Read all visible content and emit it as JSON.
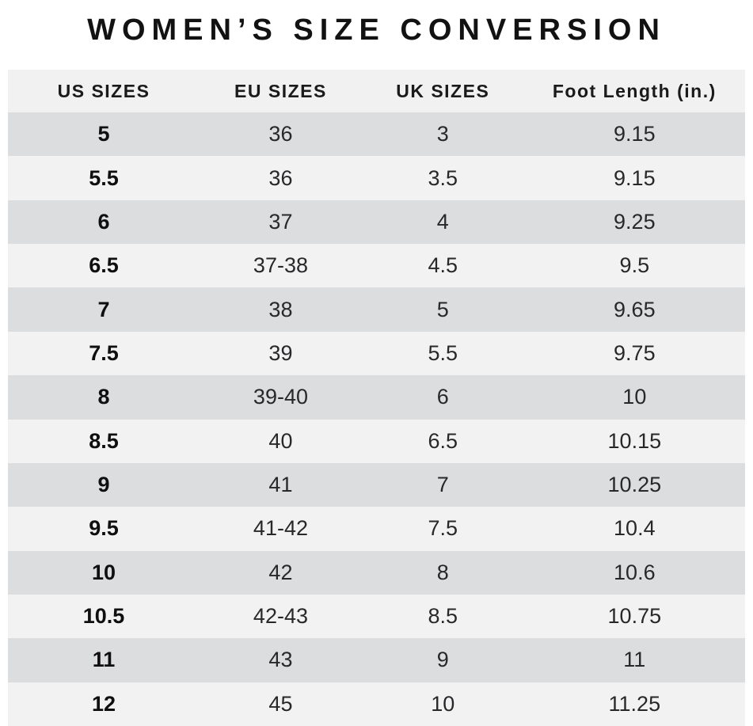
{
  "title": "WOMEN’S SIZE CONVERSION",
  "colors": {
    "row_dark": "#dcddde",
    "row_light": "#f2f2f3",
    "header_bg": "#f1f1f1",
    "title_text": "#121212",
    "cell_text": "#28282a"
  },
  "chart_data": {
    "type": "table",
    "title": "WOMEN’S SIZE CONVERSION",
    "columns": [
      "US SIZES",
      "EU SIZES",
      "UK SIZES",
      "Foot Length (in.)"
    ],
    "rows": [
      [
        "5",
        "36",
        "3",
        "9.15"
      ],
      [
        "5.5",
        "36",
        "3.5",
        "9.15"
      ],
      [
        "6",
        "37",
        "4",
        "9.25"
      ],
      [
        "6.5",
        "37-38",
        "4.5",
        "9.5"
      ],
      [
        "7",
        "38",
        "5",
        "9.65"
      ],
      [
        "7.5",
        "39",
        "5.5",
        "9.75"
      ],
      [
        "8",
        "39-40",
        "6",
        "10"
      ],
      [
        "8.5",
        "40",
        "6.5",
        "10.15"
      ],
      [
        "9",
        "41",
        "7",
        "10.25"
      ],
      [
        "9.5",
        "41-42",
        "7.5",
        "10.4"
      ],
      [
        "10",
        "42",
        "8",
        "10.6"
      ],
      [
        "10.5",
        "42-43",
        "8.5",
        "10.75"
      ],
      [
        "11",
        "43",
        "9",
        "11"
      ],
      [
        "12",
        "45",
        "10",
        "11.25"
      ]
    ],
    "layout": {
      "row_striping": "first data row dark, alternating",
      "grid": false,
      "alignment": "center"
    }
  }
}
